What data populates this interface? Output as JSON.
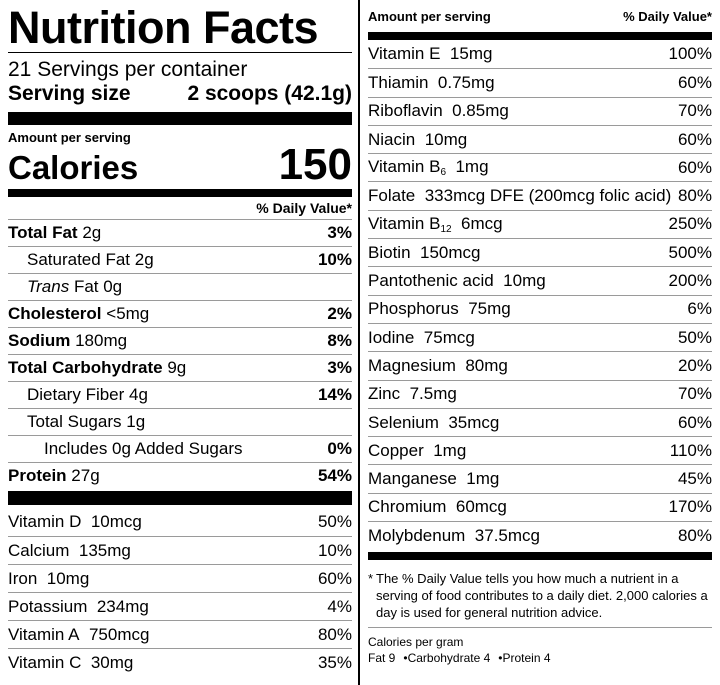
{
  "label": {
    "title": "Nutrition Facts",
    "servings_per_container": "21 Servings per container",
    "serving_size_label": "Serving size",
    "serving_size_value": "2 scoops (42.1g)",
    "amount_per_serving": "Amount per serving",
    "calories_label": "Calories",
    "calories_value": "150",
    "dv_header": "% Daily Value*"
  },
  "nutrients": [
    {
      "name": "Total Fat",
      "amount": "2g",
      "dv": "3%"
    },
    {
      "name": "Saturated Fat",
      "amount": "2g",
      "dv": "10%"
    },
    {
      "name": "Trans",
      "amount": "Fat 0g",
      "dv": ""
    },
    {
      "name": "Cholesterol",
      "amount": "<5mg",
      "dv": "2%"
    },
    {
      "name": "Sodium",
      "amount": "180mg",
      "dv": "8%"
    },
    {
      "name": "Total Carbohydrate",
      "amount": "9g",
      "dv": "3%"
    },
    {
      "name": "Dietary Fiber",
      "amount": "4g",
      "dv": "14%"
    },
    {
      "name": "Total Sugars",
      "amount": "1g",
      "dv": ""
    },
    {
      "name": "Includes 0g Added Sugars",
      "amount": "",
      "dv": "0%"
    },
    {
      "name": "Protein",
      "amount": "27g",
      "dv": "54%"
    }
  ],
  "vitamins_left": [
    {
      "name": "Vitamin D",
      "amount": "10mcg",
      "dv": "50%"
    },
    {
      "name": "Calcium",
      "amount": "135mg",
      "dv": "10%"
    },
    {
      "name": "Iron",
      "amount": "10mg",
      "dv": "60%"
    },
    {
      "name": "Potassium",
      "amount": "234mg",
      "dv": "4%"
    },
    {
      "name": "Vitamin A",
      "amount": "750mcg",
      "dv": "80%"
    },
    {
      "name": "Vitamin C",
      "amount": "30mg",
      "dv": "35%"
    }
  ],
  "right_header": {
    "left": "Amount per serving",
    "right": "% Daily Value*"
  },
  "vitamins_right": [
    {
      "name": "Vitamin E",
      "sub": "",
      "amount": "15mg",
      "dv": "100%"
    },
    {
      "name": "Thiamin",
      "sub": "",
      "amount": "0.75mg",
      "dv": "60%"
    },
    {
      "name": "Riboflavin",
      "sub": "",
      "amount": "0.85mg",
      "dv": "70%"
    },
    {
      "name": "Niacin",
      "sub": "",
      "amount": "10mg",
      "dv": "60%"
    },
    {
      "name": "Vitamin B",
      "sub": "6",
      "amount": "1mg",
      "dv": "60%"
    },
    {
      "name": "Folate",
      "sub": "",
      "amount": "333mcg DFE (200mcg folic acid)",
      "dv": "80%"
    },
    {
      "name": "Vitamin B",
      "sub": "12",
      "amount": "6mcg",
      "dv": "250%"
    },
    {
      "name": "Biotin",
      "sub": "",
      "amount": "150mcg",
      "dv": "500%"
    },
    {
      "name": "Pantothenic acid",
      "sub": "",
      "amount": "10mg",
      "dv": "200%"
    },
    {
      "name": "Phosphorus",
      "sub": "",
      "amount": "75mg",
      "dv": "6%"
    },
    {
      "name": "Iodine",
      "sub": "",
      "amount": "75mcg",
      "dv": "50%"
    },
    {
      "name": "Magnesium",
      "sub": "",
      "amount": "80mg",
      "dv": "20%"
    },
    {
      "name": "Zinc",
      "sub": "",
      "amount": "7.5mg",
      "dv": "70%"
    },
    {
      "name": "Selenium",
      "sub": "",
      "amount": "35mcg",
      "dv": "60%"
    },
    {
      "name": "Copper",
      "sub": "",
      "amount": "1mg",
      "dv": "110%"
    },
    {
      "name": "Manganese",
      "sub": "",
      "amount": "1mg",
      "dv": "45%"
    },
    {
      "name": "Chromium",
      "sub": "",
      "amount": "60mcg",
      "dv": "170%"
    },
    {
      "name": "Molybdenum",
      "sub": "",
      "amount": "37.5mcg",
      "dv": "80%"
    }
  ],
  "footnote": {
    "asterisk": "*",
    "text": "The % Daily Value tells you how much a nutrient in a serving of food contributes to a daily diet. 2,000 calories a day is used for general nutrition advice."
  },
  "calories_per_gram": {
    "label": "Calories per gram",
    "fat": "Fat 9",
    "carbohydrate": "Carbohydrate 4",
    "protein": "Protein 4",
    "separator": "•"
  }
}
